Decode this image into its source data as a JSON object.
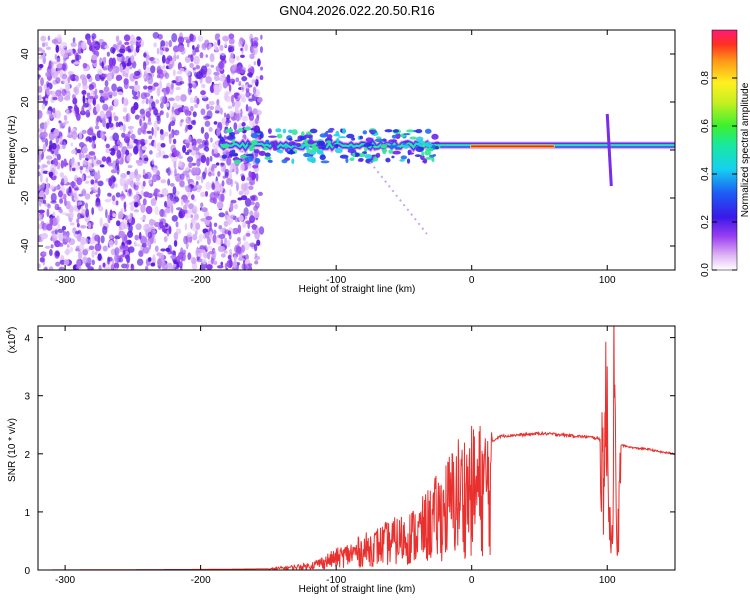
{
  "title": "GN04.2026.022.20.50.R16",
  "colors": {
    "snr_line": "#e8302e",
    "axis": "#000000"
  },
  "chart_data": [
    {
      "type": "heatmap",
      "name": "spectrogram",
      "title": "GN04.2026.022.20.50.R16",
      "xlabel": "Height of straight line (km)",
      "ylabel": "Frequency (Hz)",
      "xlim": [
        -320,
        150
      ],
      "ylim": [
        -50,
        50
      ],
      "xticks": [
        -300,
        -200,
        -100,
        0,
        100
      ],
      "yticks": [
        -40,
        -20,
        0,
        20,
        40
      ],
      "grid": false,
      "features": [
        {
          "label": "scattered noise",
          "x_range": [
            -320,
            -155
          ],
          "freq_range": [
            -50,
            48
          ]
        },
        {
          "label": "signal band",
          "x_range": [
            -185,
            150
          ],
          "freq_center": 2
        },
        {
          "label": "strong signal",
          "x_range": [
            0,
            60
          ],
          "freq_center": 1.5
        },
        {
          "label": "interference spike",
          "x": 100,
          "freq_range": [
            -15,
            15
          ]
        }
      ],
      "colorbar": {
        "label": "Normalized spectral amplitude",
        "ticks": [
          0.0,
          0.2,
          0.4,
          0.6,
          0.8
        ],
        "tick_labels": [
          "0.0",
          "0.2",
          "0.4",
          "0.6",
          "0.8"
        ],
        "range": [
          0,
          1
        ]
      }
    },
    {
      "type": "line",
      "name": "snr",
      "xlabel": "Height of straight line (km)",
      "ylabel": "SNR (10 * v/v)",
      "y_multiplier": "(x10",
      "y_multiplier_exp": "4",
      "xlim": [
        -320,
        150
      ],
      "ylim": [
        0,
        4.2
      ],
      "xticks": [
        -300,
        -200,
        -100,
        0,
        100
      ],
      "yticks": [
        0,
        1,
        2,
        3,
        4
      ],
      "grid": false,
      "series": [
        {
          "name": "SNR",
          "x": [
            -320,
            -200,
            -150,
            -140,
            -120,
            -110,
            -100,
            -90,
            -80,
            -70,
            -60,
            -50,
            -40,
            -30,
            -20,
            -10,
            0,
            10,
            20,
            30,
            40,
            50,
            60,
            70,
            80,
            90,
            95,
            100,
            103,
            105,
            107,
            110,
            120,
            130,
            140,
            150
          ],
          "values": [
            0.0,
            0.01,
            0.02,
            0.05,
            0.1,
            0.2,
            0.3,
            0.4,
            0.5,
            0.6,
            0.7,
            0.8,
            0.9,
            1.2,
            1.5,
            1.9,
            2.0,
            2.1,
            2.3,
            2.32,
            2.33,
            2.35,
            2.34,
            2.32,
            2.3,
            2.28,
            2.25,
            3.6,
            0.3,
            4.2,
            0.5,
            2.15,
            2.1,
            2.08,
            2.03,
            2.0
          ]
        }
      ]
    }
  ]
}
